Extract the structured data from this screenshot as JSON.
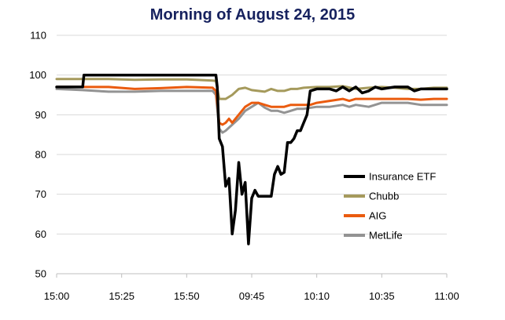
{
  "chart_data": {
    "type": "line",
    "title": "Morning of August 24, 2015",
    "xlabel": "",
    "ylabel": "",
    "ylim": [
      50,
      110
    ],
    "y_ticks": [
      50,
      60,
      70,
      80,
      90,
      100,
      110
    ],
    "x_ticks": [
      "15:00",
      "15:25",
      "15:50",
      "09:45",
      "10:10",
      "10:35",
      "11:00"
    ],
    "x_range": [
      0,
      60
    ],
    "grid": true,
    "legend_position": "right",
    "series": [
      {
        "name": "Insurance ETF",
        "color": "#000000",
        "points": [
          [
            0,
            97
          ],
          [
            4,
            97
          ],
          [
            4.2,
            100
          ],
          [
            10,
            100
          ],
          [
            20,
            100
          ],
          [
            24.5,
            100
          ],
          [
            24.7,
            97
          ],
          [
            25,
            84
          ],
          [
            25.5,
            82
          ],
          [
            26,
            72
          ],
          [
            26.5,
            74
          ],
          [
            27,
            60
          ],
          [
            27.5,
            66
          ],
          [
            28,
            78
          ],
          [
            28.5,
            70
          ],
          [
            29,
            73
          ],
          [
            29.5,
            57.5
          ],
          [
            30,
            69
          ],
          [
            30.5,
            71
          ],
          [
            31,
            69.5
          ],
          [
            32,
            69.5
          ],
          [
            33,
            69.5
          ],
          [
            33.5,
            75
          ],
          [
            34,
            77
          ],
          [
            34.5,
            75
          ],
          [
            35,
            75.5
          ],
          [
            35.5,
            83
          ],
          [
            36,
            83
          ],
          [
            36.5,
            84
          ],
          [
            37,
            86
          ],
          [
            37.5,
            86
          ],
          [
            38,
            88
          ],
          [
            38.5,
            90
          ],
          [
            39,
            96
          ],
          [
            40,
            96.5
          ],
          [
            42,
            96.5
          ],
          [
            43,
            96
          ],
          [
            44,
            97
          ],
          [
            45,
            96
          ],
          [
            46,
            97
          ],
          [
            47,
            95.5
          ],
          [
            48,
            96
          ],
          [
            49,
            97
          ],
          [
            50,
            96.5
          ],
          [
            52,
            97
          ],
          [
            54,
            97
          ],
          [
            55,
            96
          ],
          [
            56,
            96.5
          ],
          [
            58,
            96.5
          ],
          [
            60,
            96.5
          ]
        ]
      },
      {
        "name": "Chubb",
        "color": "#a59a5c",
        "points": [
          [
            0,
            99
          ],
          [
            4,
            99
          ],
          [
            8,
            99
          ],
          [
            12,
            98.8
          ],
          [
            16,
            98.9
          ],
          [
            20,
            98.9
          ],
          [
            24,
            98.6
          ],
          [
            24.5,
            98.5
          ],
          [
            25,
            94
          ],
          [
            26,
            94
          ],
          [
            27,
            95
          ],
          [
            28,
            96.5
          ],
          [
            29,
            96.8
          ],
          [
            30,
            96.2
          ],
          [
            31,
            96
          ],
          [
            32,
            95.8
          ],
          [
            33,
            96.5
          ],
          [
            34,
            96
          ],
          [
            35,
            96
          ],
          [
            36,
            96.5
          ],
          [
            37,
            96.5
          ],
          [
            38,
            96.8
          ],
          [
            40,
            97
          ],
          [
            42,
            97
          ],
          [
            44,
            97.2
          ],
          [
            46,
            96.5
          ],
          [
            48,
            96.8
          ],
          [
            50,
            97
          ],
          [
            52,
            96.8
          ],
          [
            54,
            96.5
          ],
          [
            56,
            96.5
          ],
          [
            58,
            96.8
          ],
          [
            60,
            96.8
          ]
        ]
      },
      {
        "name": "AIG",
        "color": "#ea5b0f",
        "points": [
          [
            0,
            97
          ],
          [
            4,
            97
          ],
          [
            8,
            97
          ],
          [
            12,
            96.5
          ],
          [
            16,
            96.7
          ],
          [
            20,
            97
          ],
          [
            24,
            96.8
          ],
          [
            24.5,
            96
          ],
          [
            25,
            88
          ],
          [
            25.5,
            87.5
          ],
          [
            26,
            88
          ],
          [
            26.5,
            89
          ],
          [
            27,
            88
          ],
          [
            28,
            90
          ],
          [
            29,
            92
          ],
          [
            30,
            93
          ],
          [
            31,
            93
          ],
          [
            32,
            92.5
          ],
          [
            33,
            92
          ],
          [
            34,
            92
          ],
          [
            35,
            92
          ],
          [
            36,
            92.5
          ],
          [
            37,
            92.5
          ],
          [
            38,
            92.5
          ],
          [
            39,
            92.5
          ],
          [
            40,
            93
          ],
          [
            42,
            93.5
          ],
          [
            44,
            94
          ],
          [
            45,
            93.5
          ],
          [
            46,
            94
          ],
          [
            48,
            94
          ],
          [
            50,
            94
          ],
          [
            52,
            94
          ],
          [
            54,
            94
          ],
          [
            56,
            93.8
          ],
          [
            58,
            94
          ],
          [
            60,
            94
          ]
        ]
      },
      {
        "name": "MetLife",
        "color": "#939393",
        "points": [
          [
            0,
            96.5
          ],
          [
            4,
            96.2
          ],
          [
            8,
            95.8
          ],
          [
            12,
            95.8
          ],
          [
            16,
            96
          ],
          [
            20,
            96
          ],
          [
            24,
            96
          ],
          [
            24.5,
            95
          ],
          [
            25,
            86.5
          ],
          [
            25.5,
            85.5
          ],
          [
            26,
            86
          ],
          [
            27,
            87.5
          ],
          [
            28,
            89
          ],
          [
            29,
            91
          ],
          [
            30,
            92
          ],
          [
            31,
            93
          ],
          [
            32,
            91.8
          ],
          [
            33,
            91
          ],
          [
            34,
            91
          ],
          [
            35,
            90.5
          ],
          [
            36,
            91
          ],
          [
            37,
            91.5
          ],
          [
            38,
            91.5
          ],
          [
            40,
            92
          ],
          [
            42,
            92
          ],
          [
            44,
            92.5
          ],
          [
            45,
            92
          ],
          [
            46,
            92.5
          ],
          [
            48,
            92
          ],
          [
            50,
            93
          ],
          [
            52,
            93
          ],
          [
            54,
            93
          ],
          [
            56,
            92.5
          ],
          [
            58,
            92.5
          ],
          [
            60,
            92.5
          ]
        ]
      }
    ]
  }
}
